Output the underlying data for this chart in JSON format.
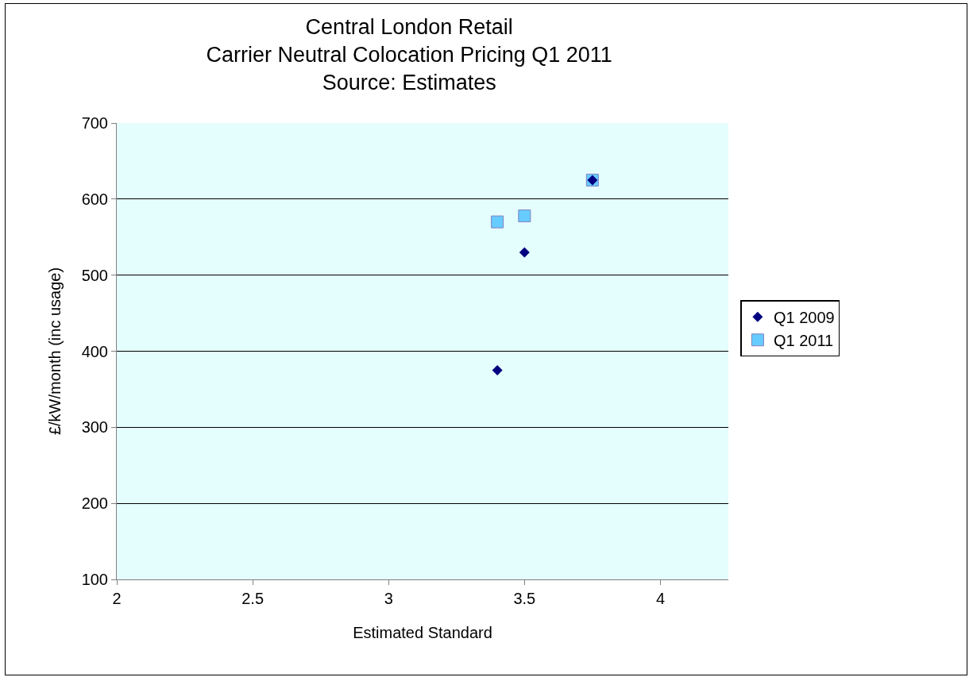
{
  "chart_data": {
    "type": "scatter",
    "title": "Central London Retail\nCarrier Neutral Colocation Pricing Q1 2011\nSource: Estimates",
    "xlabel": "Estimated Standard",
    "ylabel": "£/kW/month (inc usage)",
    "xlim": [
      2,
      4.25
    ],
    "xticks": [
      2,
      2.5,
      3,
      3.5,
      4
    ],
    "ylim": [
      100,
      700
    ],
    "yticks": [
      100,
      200,
      300,
      400,
      500,
      600,
      700
    ],
    "grid": "y",
    "legend": "right",
    "series": [
      {
        "name": "Q1 2009",
        "color": "#000080",
        "marker": "diamond",
        "x": [
          3.4,
          3.5,
          3.75
        ],
        "values": [
          375,
          530,
          625
        ]
      },
      {
        "name": "Q1 2011",
        "color": "#66ccff",
        "marker": "square",
        "x": [
          3.4,
          3.5,
          3.75
        ],
        "values": [
          570,
          578,
          625
        ]
      }
    ]
  }
}
